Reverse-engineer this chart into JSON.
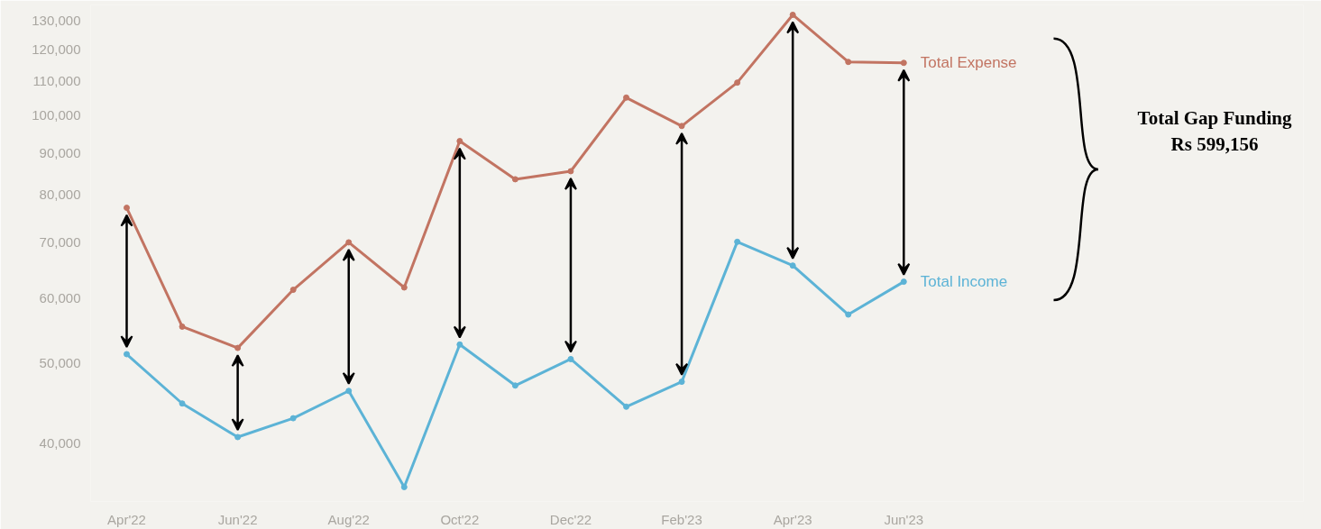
{
  "chart_data": {
    "type": "line",
    "categories": [
      "Apr'22",
      null,
      "Jun'22",
      null,
      "Aug'22",
      null,
      "Oct'22",
      null,
      "Dec'22",
      null,
      "Feb'23",
      null,
      "Apr'23",
      null,
      "Jun'23"
    ],
    "series": [
      {
        "name": "Total Expense",
        "color": "#c27462",
        "values": [
          77200,
          55400,
          52200,
          61400,
          70100,
          61800,
          93000,
          83600,
          85500,
          105000,
          97000,
          109500,
          132300,
          116000,
          115700
        ]
      },
      {
        "name": "Total Income",
        "color": "#5cb3d6",
        "values": [
          51300,
          44700,
          40700,
          42900,
          46300,
          35400,
          52700,
          47000,
          50600,
          44300,
          47500,
          70200,
          65700,
          57300,
          62800
        ]
      }
    ],
    "log": "y",
    "ylim": [
      34000,
      136000
    ],
    "yticks": [
      {
        "value": 40000,
        "label": "40,000"
      },
      {
        "value": 50000,
        "label": "50,000"
      },
      {
        "value": 60000,
        "label": "60,000"
      },
      {
        "value": 70000,
        "label": "70,000"
      },
      {
        "value": 80000,
        "label": "80,000"
      },
      {
        "value": 90000,
        "label": "90,000"
      },
      {
        "value": 100000,
        "label": "100,000"
      },
      {
        "value": 110000,
        "label": "110,000"
      },
      {
        "value": 120000,
        "label": "120,000"
      },
      {
        "value": 130000,
        "label": "130,000"
      }
    ],
    "grid": false,
    "legend": false,
    "marker": "circle",
    "line_style": "solid",
    "annotations": [
      "Total Gap Funding",
      "Rs 599,156"
    ]
  }
}
